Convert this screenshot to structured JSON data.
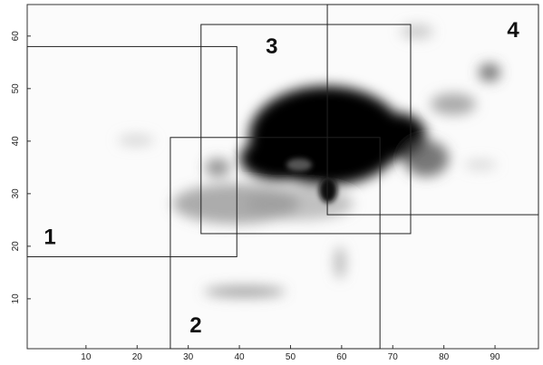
{
  "chart_data": {
    "type": "image-regions",
    "xlim": [
      -1.5,
      98.5
    ],
    "ylim": [
      0.5,
      66
    ],
    "xticks": [
      10,
      20,
      30,
      40,
      50,
      60,
      70,
      80,
      90
    ],
    "yticks": [
      10,
      20,
      30,
      40,
      50,
      60
    ],
    "regions": [
      {
        "label": "1",
        "xrange": [
          -1.5,
          39.5
        ],
        "yrange": [
          18,
          58
        ]
      },
      {
        "label": "2",
        "xrange": [
          26.5,
          67.5
        ],
        "yrange": [
          0.5,
          40.7
        ]
      },
      {
        "label": "3",
        "xrange": [
          32.5,
          73.5
        ],
        "yrange": [
          22.4,
          62.2
        ]
      },
      {
        "label": "4",
        "xrange": [
          57.2,
          98.5
        ],
        "yrange": [
          26,
          66
        ]
      }
    ]
  }
}
